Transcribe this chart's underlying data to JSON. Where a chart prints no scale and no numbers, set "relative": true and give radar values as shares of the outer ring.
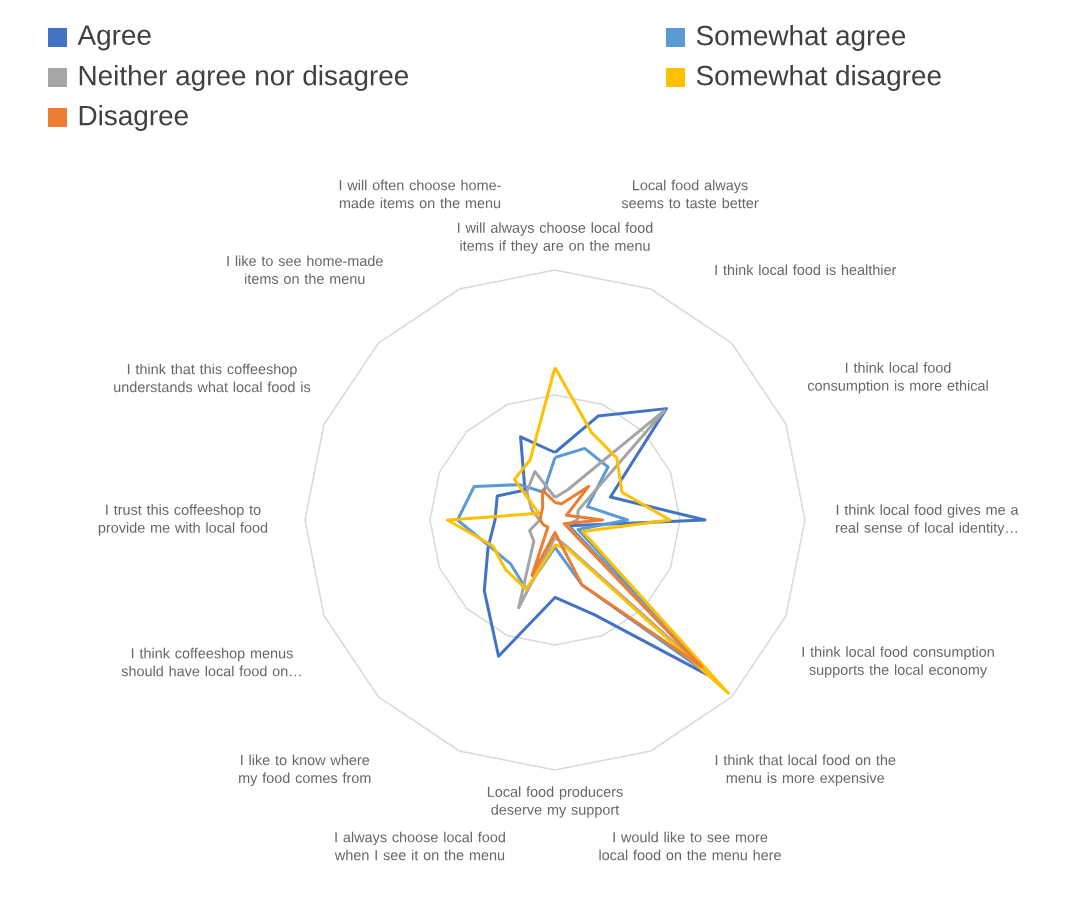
{
  "chart_data": {
    "type": "radar",
    "relative": true,
    "grid": true,
    "legend": "top",
    "marker": "none",
    "line_style": "solid",
    "categories": [
      "I will always choose local food items if they are on the menu",
      "Local food always seems to taste better",
      "I think local food is healthier",
      "I think local food consumption is more ethical",
      "I think local food gives me a real sense of local identity…",
      "I think local food consumption supports the local economy",
      "I think that local food on the menu is more expensive",
      "I would like to see more local food on the menu here",
      "Local food producers deserve my support",
      "I always choose local food when I see it on the menu",
      "I like to know where my food comes from",
      "I think coffeeshop menus should have local food on…",
      "I trust this coffeeshop to provide me with local food",
      "I think that this coffeeshop understands what local food is",
      "I like to see home-made items on the menu",
      "I will often choose home-made items on the menu"
    ],
    "series": [
      {
        "name": "Agree",
        "color": "#4472c4",
        "values": [
          0.27,
          0.45,
          0.63,
          0.24,
          0.6,
          0.06,
          0.89,
          0.41,
          0.31,
          0.59,
          0.4,
          0.29,
          0.24,
          0.25,
          0.17,
          0.36
        ]
      },
      {
        "name": "Somewhat agree",
        "color": "#5b9bd5",
        "values": [
          0.25,
          0.31,
          0.3,
          0.14,
          0.29,
          0.1,
          0.88,
          0.28,
          0.11,
          0.3,
          0.25,
          0.28,
          0.39,
          0.35,
          0.2,
          0.12
        ]
      },
      {
        "name": "Neither agree nor disagree",
        "color": "#a5a5a5",
        "values": [
          0.09,
          0.13,
          0.62,
          0.1,
          0.09,
          0.05,
          0.86,
          0.11,
          0.07,
          0.38,
          0.12,
          0.11,
          0.06,
          0.1,
          0.16,
          0.21
        ]
      },
      {
        "name": "Somewhat disagree",
        "color": "#ffc000",
        "values": [
          0.61,
          0.38,
          0.35,
          0.29,
          0.46,
          0.12,
          0.98,
          0.12,
          0.1,
          0.3,
          0.28,
          0.27,
          0.43,
          0.07,
          0.23,
          0.26
        ]
      },
      {
        "name": "Disagree",
        "color": "#ed7d31",
        "values": [
          0.07,
          0.07,
          0.19,
          0.05,
          0.19,
          0.04,
          0.83,
          0.28,
          0.05,
          0.24,
          0.04,
          0.05,
          0.06,
          0.06,
          0.07,
          0.13
        ]
      }
    ]
  }
}
